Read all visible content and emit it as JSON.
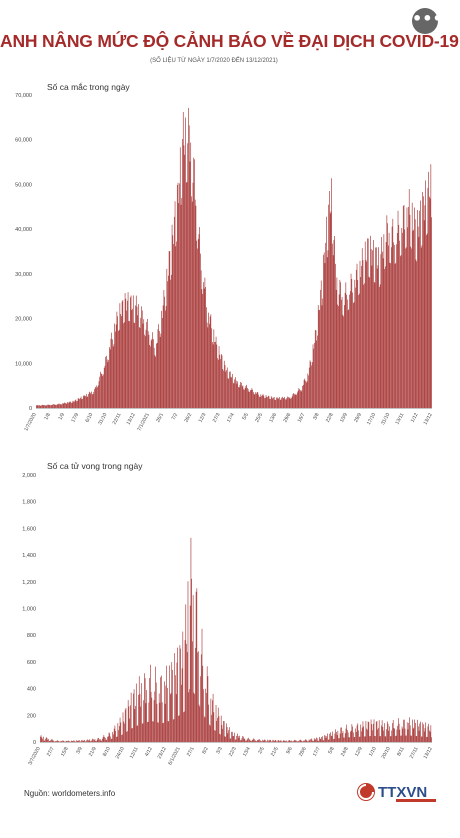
{
  "header": {
    "title": "ANH NÂNG MỨC ĐỘ CẢNH BÁO VỀ ĐẠI DỊCH COVID-19",
    "subtitle": "(SỐ LIỆU TỪ NGÀY 1/7/2020 ĐẾN 13/12/2021)",
    "more_icon": "more-horizontal-icon",
    "more_label": "•••"
  },
  "footer": {
    "source": "Nguồn: worldometers.info",
    "logo_text": "TTXVN",
    "logo_icon": "ttxvn-logo"
  },
  "colors": {
    "bar": "#a93a3a",
    "title": "#a52a2a",
    "axis": "#888888"
  },
  "chart_data": [
    {
      "type": "bar",
      "title": "Số ca mắc trong ngày",
      "ylim": [
        0,
        70000
      ],
      "yticks": [
        "0",
        "10,000",
        "20,000",
        "30,000",
        "40,000",
        "50,000",
        "60,000",
        "70,000"
      ],
      "xticks": [
        "1/7/2020",
        "1/8",
        "1/9",
        "17/9",
        "6/10",
        "31/10",
        "22/11",
        "13/12",
        "7/1/2021",
        "26/1",
        "7/2",
        "26/2",
        "12/3",
        "27/3",
        "17/4",
        "5/5",
        "25/5",
        "13/6",
        "29/6",
        "16/7",
        "3/8",
        "22/8",
        "10/9",
        "29/9",
        "17/10",
        "31/10",
        "13/11",
        "1/12",
        "13/12"
      ],
      "x_start": "2020-07-01",
      "x_end": "2021-12-13",
      "anchors_y": [
        [
          0,
          600
        ],
        [
          15,
          700
        ],
        [
          31,
          900
        ],
        [
          50,
          1500
        ],
        [
          62,
          2500
        ],
        [
          78,
          4000
        ],
        [
          92,
          10000
        ],
        [
          100,
          15000
        ],
        [
          110,
          21000
        ],
        [
          120,
          24000
        ],
        [
          135,
          23000
        ],
        [
          145,
          20000
        ],
        [
          160,
          14000
        ],
        [
          170,
          23000
        ],
        [
          180,
          35000
        ],
        [
          190,
          48000
        ],
        [
          197,
          61000
        ],
        [
          205,
          62000
        ],
        [
          212,
          52000
        ],
        [
          220,
          35000
        ],
        [
          230,
          22000
        ],
        [
          242,
          14000
        ],
        [
          255,
          8500
        ],
        [
          270,
          5800
        ],
        [
          285,
          4500
        ],
        [
          300,
          3000
        ],
        [
          320,
          2200
        ],
        [
          340,
          2400
        ],
        [
          355,
          4500
        ],
        [
          365,
          8000
        ],
        [
          375,
          17000
        ],
        [
          383,
          28000
        ],
        [
          391,
          43000
        ],
        [
          396,
          48000
        ],
        [
          402,
          29000
        ],
        [
          412,
          25000
        ],
        [
          430,
          30000
        ],
        [
          445,
          36000
        ],
        [
          460,
          33000
        ],
        [
          470,
          40000
        ],
        [
          480,
          39000
        ],
        [
          490,
          42000
        ],
        [
          500,
          45000
        ],
        [
          510,
          40000
        ],
        [
          518,
          45000
        ],
        [
          525,
          48000
        ],
        [
          530,
          52000
        ]
      ],
      "weekly_amplitude": 0.18
    },
    {
      "type": "bar",
      "title": "Số ca tử vong trong ngày",
      "ylim": [
        0,
        2000
      ],
      "yticks": [
        "0",
        "200",
        "400",
        "600",
        "800",
        "1,000",
        "1,200",
        "1,400",
        "1,600",
        "1,800",
        "2,000"
      ],
      "xticks": [
        "3/7/2020",
        "27/7",
        "15/8",
        "3/9",
        "21/9",
        "8/10",
        "24/10",
        "12/11",
        "4/12",
        "23/12",
        "6/1/2021",
        "27/1",
        "8/2",
        "3/3",
        "22/3",
        "13/4",
        "2/5",
        "21/5",
        "9/6",
        "28/6",
        "17/7",
        "5/8",
        "24/8",
        "12/9",
        "1/10",
        "20/10",
        "8/11",
        "27/11",
        "13/12"
      ],
      "x_start": "2020-07-01",
      "x_end": "2021-12-13",
      "anchors_y": [
        [
          0,
          40
        ],
        [
          20,
          10
        ],
        [
          40,
          8
        ],
        [
          60,
          12
        ],
        [
          80,
          25
        ],
        [
          95,
          60
        ],
        [
          110,
          150
        ],
        [
          125,
          300
        ],
        [
          135,
          380
        ],
        [
          150,
          450
        ],
        [
          165,
          400
        ],
        [
          180,
          480
        ],
        [
          195,
          650
        ],
        [
          203,
          1200
        ],
        [
          210,
          1000
        ],
        [
          220,
          600
        ],
        [
          232,
          300
        ],
        [
          245,
          150
        ],
        [
          260,
          60
        ],
        [
          280,
          25
        ],
        [
          300,
          15
        ],
        [
          330,
          10
        ],
        [
          360,
          15
        ],
        [
          380,
          30
        ],
        [
          395,
          60
        ],
        [
          410,
          95
        ],
        [
          430,
          110
        ],
        [
          450,
          130
        ],
        [
          470,
          120
        ],
        [
          485,
          135
        ],
        [
          500,
          140
        ],
        [
          515,
          120
        ],
        [
          530,
          100
        ]
      ],
      "weekly_amplitude": 0.65
    }
  ]
}
